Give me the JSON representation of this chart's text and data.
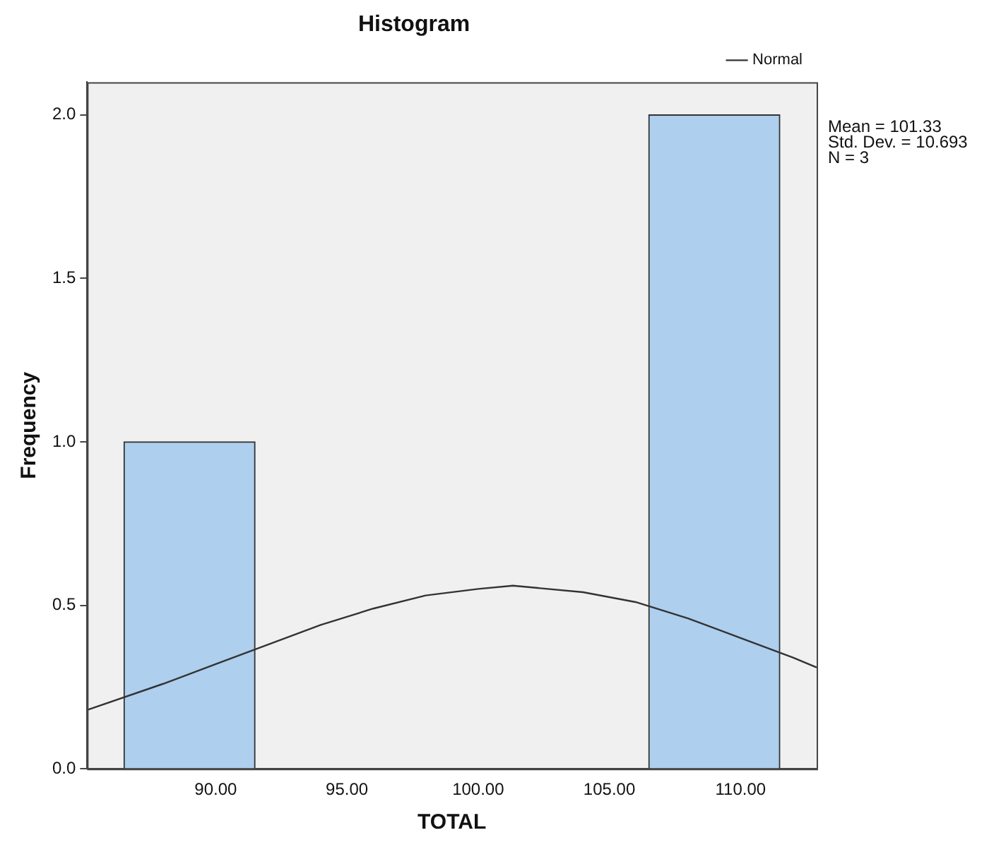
{
  "chart_data": {
    "type": "histogram",
    "title": "Histogram",
    "xlabel": "TOTAL",
    "ylabel": "Frequency",
    "bins": [
      86.5,
      91.5,
      96.5,
      101.5,
      106.5,
      111.5
    ],
    "values": [
      1,
      0,
      0,
      0,
      2
    ],
    "color": "#aecfee",
    "series": [
      {
        "name": "Normal",
        "type": "line",
        "color": "#333333",
        "x": [
          85.1,
          88,
          90,
          92,
          94,
          96,
          98,
          100,
          101.33,
          104,
          106,
          108,
          110,
          112,
          112.9
        ],
        "values": [
          0.18,
          0.26,
          0.32,
          0.38,
          0.44,
          0.49,
          0.53,
          0.55,
          0.56,
          0.54,
          0.51,
          0.46,
          0.4,
          0.34,
          0.31
        ]
      }
    ],
    "xlim": [
      85.1,
      112.9
    ],
    "xticks": [
      {
        "value": 90,
        "label": "90.00"
      },
      {
        "value": 95,
        "label": "95.00"
      },
      {
        "value": 100,
        "label": "100.00"
      },
      {
        "value": 105,
        "label": "105.00"
      },
      {
        "value": 110,
        "label": "110.00"
      }
    ],
    "ylim": [
      0,
      2.1
    ],
    "yticks": [
      {
        "value": 0,
        "label": "0.0"
      },
      0.5,
      {
        "value": 1,
        "label": "1.0"
      },
      1.5,
      {
        "value": 2,
        "label": "2.0"
      }
    ],
    "annotations": [
      "Mean = 101.33",
      "Std. Dev. = 10.693",
      "N = 3"
    ],
    "legend": "top right",
    "grid": false,
    "marker": "none"
  }
}
